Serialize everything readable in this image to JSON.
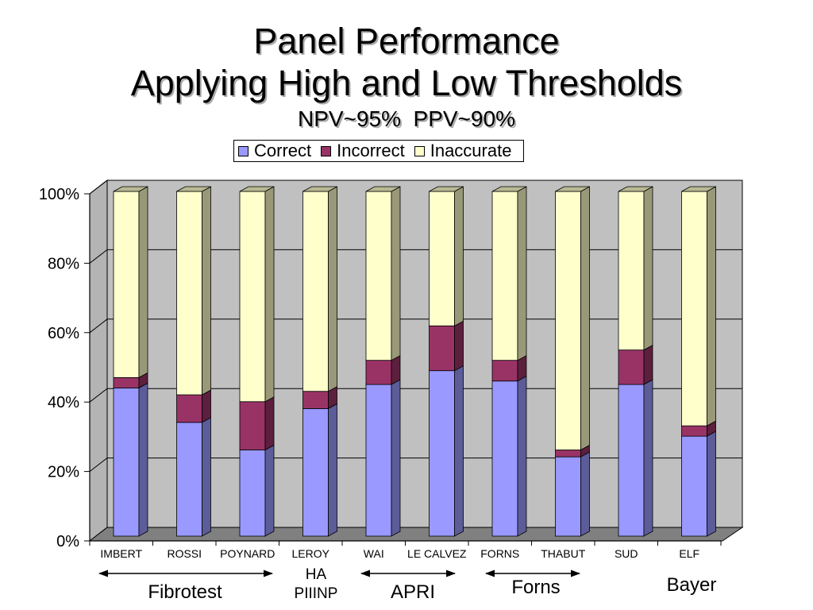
{
  "chart_data": {
    "type": "bar",
    "stacking": "percent",
    "style": "3d",
    "title": [
      "Panel Performance",
      "Applying High and Low Thresholds"
    ],
    "subtitle": "NPV~95%  PPV~90%",
    "categories": [
      "IMBERT",
      "ROSSI",
      "POYNARD",
      "LEROY",
      "WAI",
      "LE CALVEZ",
      "FORNS",
      "THABUT",
      "SUD",
      "ELF"
    ],
    "series": [
      {
        "name": "Correct",
        "color": "#9999ff",
        "values": [
          43,
          33,
          25,
          37,
          44,
          48,
          45,
          23,
          44,
          29
        ]
      },
      {
        "name": "Incorrect",
        "color": "#993366",
        "values": [
          3,
          8,
          14,
          5,
          7,
          13,
          6,
          2,
          10,
          3
        ]
      },
      {
        "name": "Inaccurate",
        "color": "#ffffcc",
        "values": [
          54,
          59,
          61,
          58,
          49,
          39,
          49,
          75,
          46,
          68
        ]
      }
    ],
    "y_ticks": [
      "0%",
      "20%",
      "40%",
      "60%",
      "80%",
      "100%"
    ],
    "ylim": [
      0,
      100
    ],
    "grid": true,
    "legend_position": "top",
    "wall_color": "#c0c0c0",
    "floor_color": "#808080",
    "annotations": [
      {
        "lines": [
          "Fibrotest"
        ]
      },
      {
        "lines": [
          "HA",
          "PIIINP"
        ]
      },
      {
        "lines": [
          "APRI"
        ]
      },
      {
        "lines": [
          "Forns"
        ]
      },
      {
        "lines": [
          "Bayer"
        ]
      }
    ]
  }
}
